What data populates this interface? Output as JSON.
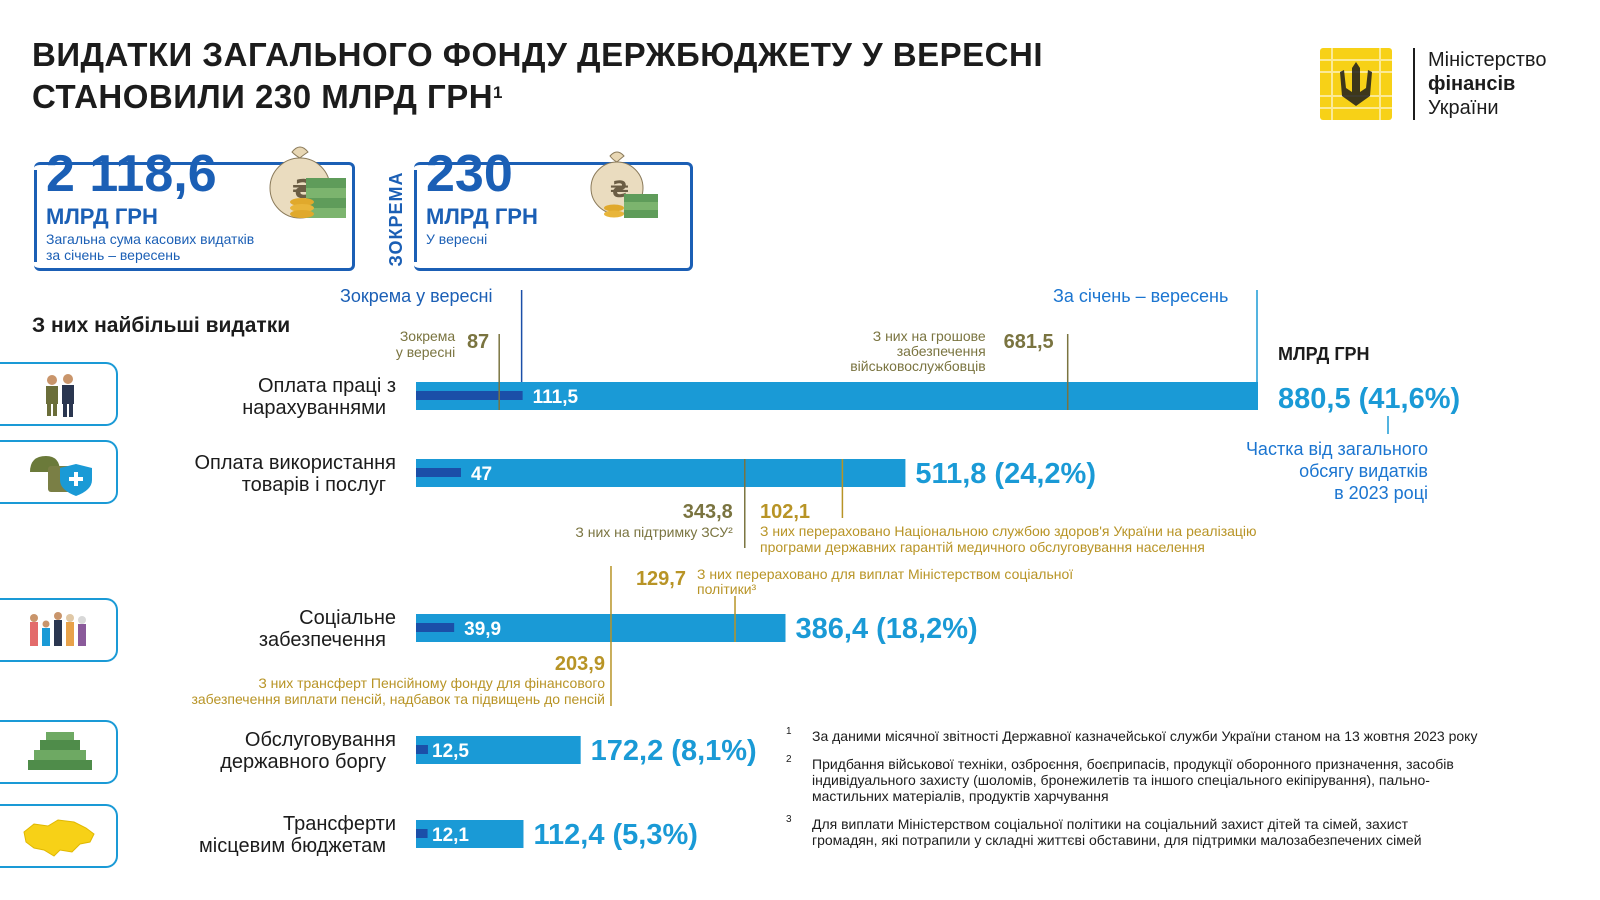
{
  "header": {
    "title_line1": "ВИДАТКИ ЗАГАЛЬНОГО ФОНДУ ДЕРЖБЮДЖЕТУ У ВЕРЕСНІ",
    "title_line2": "СТАНОВИЛИ 230 МЛРД ГРН",
    "title_sup": "1"
  },
  "logo": {
    "line1": "Міністерство",
    "line2": "фінансів",
    "line3": "України",
    "color": "#f7d117"
  },
  "summary": {
    "total": {
      "value": "2 118,6",
      "unit": "МЛРД ГРН",
      "desc_line1": "Загальна сума касових видатків",
      "desc_line2": "за січень – вересень",
      "icon": "money-bag-icon"
    },
    "separator": "ЗОКРЕМА",
    "month": {
      "value": "230",
      "unit": "МЛРД ГРН",
      "desc_line1": "У вересні",
      "icon": "money-bag-icon"
    }
  },
  "section_title": "З них найбільші видатки",
  "legend": {
    "september": "Зокрема у вересні",
    "ytd": "За січень – вересень",
    "unit": "МЛРД ГРН",
    "share_line1": "Частка від загального",
    "share_line2": "обсягу видатків",
    "share_line3": "в 2023 році"
  },
  "chart_data": {
    "type": "bar",
    "orientation": "horizontal",
    "categories": [
      "Оплата праці з нарахуваннями",
      "Оплата використання товарів і послуг",
      "Соціальне забезпечення",
      "Обслуговування державного боргу",
      "Трансферти місцевим бюджетам"
    ],
    "series": [
      {
        "name": "За січень – вересень",
        "values": [
          880.5,
          511.8,
          386.4,
          172.2,
          112.4
        ]
      },
      {
        "name": "Зокрема у вересні",
        "values": [
          111.5,
          47,
          39.9,
          12.5,
          12.1
        ]
      }
    ],
    "share_pct": [
      41.6,
      24.2,
      18.2,
      8.1,
      5.3
    ],
    "colors": {
      "ytd": "#1a9ad6",
      "september": "#1b4fa8"
    },
    "value_labels": [
      "880,5 (41,6%)",
      "511,8 (24,2%)",
      "386,4 (18,2%)",
      "172,2 (8,1%)",
      "112,4 (5,3%)"
    ],
    "inner_labels": [
      "111,5",
      "47",
      "39,9",
      "12,5",
      "12,1"
    ],
    "category_lines": [
      [
        "Оплата праці з",
        "нарахуваннями"
      ],
      [
        "Оплата використання",
        "товарів і послуг"
      ],
      [
        "Соціальне",
        "забезпечення"
      ],
      [
        "Обслуговування",
        "державного боргу"
      ],
      [
        "Трансферти",
        "місцевим бюджетам"
      ]
    ],
    "category_icons": [
      "people-icon",
      "helmet-shield-icon",
      "family-icon",
      "money-stack-icon",
      "ukraine-map-icon"
    ],
    "annotations": [
      {
        "id": "a1",
        "bar": 0,
        "value": 87,
        "label": "87",
        "text": [
          "Зокрема",
          "у вересні"
        ],
        "color": "#7a7440"
      },
      {
        "id": "a2",
        "bar": 0,
        "value": 681.5,
        "label": "681,5",
        "text": [
          "З них на грошове",
          "забезпечення",
          "військовослужбовців"
        ],
        "color": "#7a7440"
      },
      {
        "id": "a3",
        "bar": 1,
        "value": 343.8,
        "label": "343,8",
        "text": [
          "З них на підтримку ЗСУ²"
        ],
        "color": "#7a7440"
      },
      {
        "id": "a4",
        "bar": 1,
        "value": 445.9,
        "label": "102,1",
        "text": [
          "З них перераховано Національною службою здоров'я України на реалізацію",
          "програми державних гарантій медичного обслуговування населення"
        ],
        "color": "#b89426"
      },
      {
        "id": "a5",
        "bar": 2,
        "value": 203.9,
        "label": "203,9",
        "text": [
          "З них трансферт Пенсійному фонду для фінансового",
          "забезпечення виплати пенсій, надбавок та підвищень до пенсій"
        ],
        "color": "#b89426"
      },
      {
        "id": "a6",
        "bar": 2,
        "value": 333.6,
        "label": "129,7",
        "text": [
          "З них перераховано для виплат Міністерством соціальної",
          "політики³"
        ],
        "color": "#b89426"
      }
    ],
    "xlim": [
      0,
      880.5
    ]
  },
  "footnotes": [
    {
      "num": "1",
      "lines": [
        "За даними місячної звітності Державної казначейської служби України станом на 13 жовтня 2023 року"
      ]
    },
    {
      "num": "2",
      "lines": [
        "Придбання військової техніки, озброєння, боєприпасів, продукції оборонного призначення, засобів",
        "індивідуального захисту (шоломів, бронежилетів та іншого спеціального екіпірування), пально-",
        "мастильних матеріалів, продуктів харчування"
      ]
    },
    {
      "num": "3",
      "lines": [
        "Для виплати Міністерством соціальної політики на соціальний захист дітей та сімей, захист",
        "громадян, які потрапили у складні життєві обставини, для підтримки малозабезпечених сімей"
      ]
    }
  ]
}
